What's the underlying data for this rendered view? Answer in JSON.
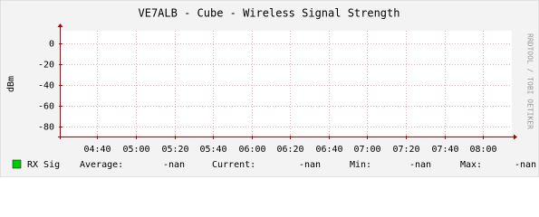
{
  "chart_data": {
    "type": "line",
    "title": "VE7ALB - Cube - Wireless Signal Strength",
    "y_label": "dBm",
    "credit": "RRDTOOL / TOBI OETIKER",
    "xlim": [
      261,
      495
    ],
    "xticks": [
      {
        "value": 280,
        "label": "04:40"
      },
      {
        "value": 300,
        "label": "05:00"
      },
      {
        "value": 320,
        "label": "05:20"
      },
      {
        "value": 340,
        "label": "05:40"
      },
      {
        "value": 360,
        "label": "06:00"
      },
      {
        "value": 380,
        "label": "06:20"
      },
      {
        "value": 400,
        "label": "06:40"
      },
      {
        "value": 420,
        "label": "07:00"
      },
      {
        "value": 440,
        "label": "07:20"
      },
      {
        "value": 460,
        "label": "07:40"
      },
      {
        "value": 480,
        "label": "08:00"
      }
    ],
    "ylim": [
      -90,
      12
    ],
    "yticks": [
      0,
      -20,
      -40,
      -60,
      -80
    ],
    "grid": true,
    "series": [
      {
        "name": "RX Sig",
        "color": "#00cc00"
      }
    ],
    "legend_stats": [
      {
        "label": "Average:",
        "value": "-nan"
      },
      {
        "label": "Current:",
        "value": "-nan"
      },
      {
        "label": "Min:",
        "value": "-nan"
      },
      {
        "label": "Max:",
        "value": "-nan"
      }
    ]
  }
}
